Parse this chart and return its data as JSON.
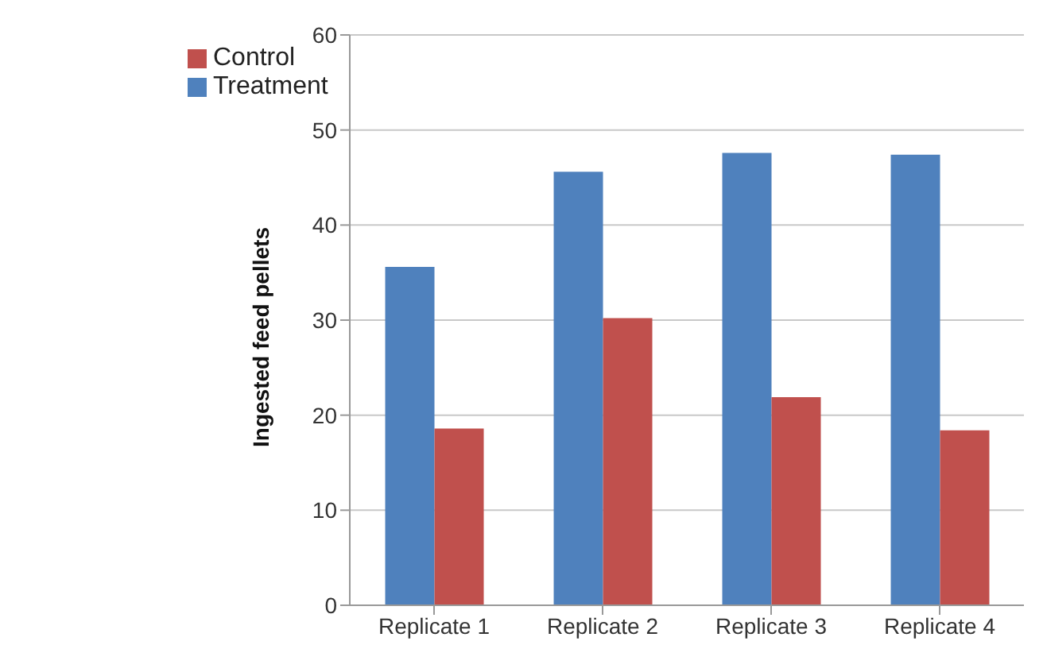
{
  "chart_data": {
    "type": "bar",
    "ylabel": "Ingested feed pellets",
    "categories": [
      "Replicate 1",
      "Replicate 2",
      "Replicate 3",
      "Replicate 4"
    ],
    "series": [
      {
        "name": "Treatment",
        "color": "#4f81bd",
        "values": [
          35.6,
          45.6,
          47.6,
          47.4
        ]
      },
      {
        "name": "Control",
        "color": "#c0504d",
        "values": [
          18.6,
          30.2,
          21.9,
          18.4
        ]
      }
    ],
    "ylim": [
      0,
      60
    ],
    "yticks": [
      0,
      10,
      20,
      30,
      40,
      50,
      60
    ],
    "grid": "y",
    "legend": "top left"
  }
}
